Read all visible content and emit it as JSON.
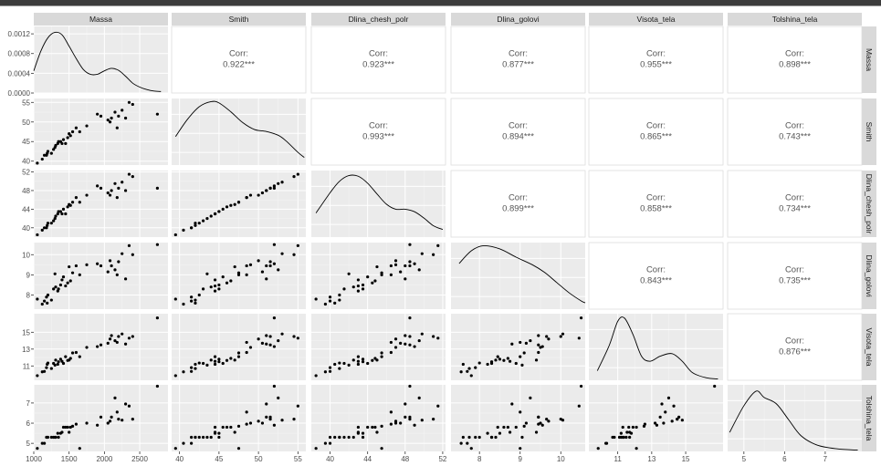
{
  "chart_data": {
    "type": "pairs",
    "variables": [
      "Massa",
      "Smith",
      "Dlina_chesh_polr",
      "Dlina_golovi",
      "Visota_tela",
      "Tolshina_tela"
    ],
    "correlations": {
      "Massa": {
        "Smith": "0.922***",
        "Dlina_chesh_polr": "0.923***",
        "Dlina_golovi": "0.877***",
        "Visota_tela": "0.955***",
        "Tolshina_tela": "0.898***"
      },
      "Smith": {
        "Dlina_chesh_polr": "0.993***",
        "Dlina_golovi": "0.894***",
        "Visota_tela": "0.865***",
        "Tolshina_tela": "0.743***"
      },
      "Dlina_chesh_polr": {
        "Dlina_golovi": "0.899***",
        "Visota_tela": "0.858***",
        "Tolshina_tela": "0.734***"
      },
      "Dlina_golovi": {
        "Visota_tela": "0.843***",
        "Tolshina_tela": "0.735***"
      },
      "Visota_tela": {
        "Tolshina_tela": "0.876***"
      }
    },
    "corr_label": "Corr:",
    "axes": {
      "Massa": {
        "lim": [
          1000,
          2900
        ],
        "ticks": [
          1000,
          1500,
          2000,
          2500
        ],
        "tick_labels": [
          "1000",
          "1500",
          "2000",
          "2500"
        ]
      },
      "Smith": {
        "lim": [
          39,
          56
        ],
        "ticks": [
          40,
          45,
          50,
          55
        ],
        "tick_labels": [
          "40",
          "45",
          "50",
          "55"
        ]
      },
      "Dlina_chesh_polr": {
        "lim": [
          38,
          52.3
        ],
        "ticks": [
          40,
          44,
          48,
          52
        ],
        "tick_labels": [
          "40",
          "44",
          "48",
          "52"
        ]
      },
      "Dlina_golovi": {
        "lim": [
          7.3,
          10.6
        ],
        "ticks": [
          8,
          9,
          10
        ],
        "tick_labels": [
          "8",
          "9",
          "10"
        ]
      },
      "Visota_tela": {
        "lim": [
          9.3,
          17.2
        ],
        "ticks": [
          11,
          13,
          15
        ],
        "tick_labels": [
          "11",
          "13",
          "15"
        ]
      },
      "Tolshina_tela": {
        "lim": [
          4.6,
          7.9
        ],
        "ticks": [
          5,
          6,
          7
        ],
        "tick_labels": [
          "5",
          "6",
          "7"
        ]
      }
    },
    "massa_density_axis": {
      "lim": [
        0,
        0.00135
      ],
      "ticks": [
        0,
        0.0004,
        0.0008,
        0.0012
      ],
      "tick_labels": [
        "0.0000",
        "0.0004",
        "0.0008",
        "0.0012"
      ]
    },
    "observations": {
      "Massa": [
        1050,
        1120,
        1150,
        1180,
        1190,
        1200,
        1250,
        1280,
        1300,
        1310,
        1340,
        1350,
        1380,
        1400,
        1420,
        1450,
        1480,
        1500,
        1520,
        1550,
        1600,
        1650,
        1750,
        1900,
        1950,
        2050,
        2080,
        2100,
        2150,
        2180,
        2200,
        2250,
        2300,
        2350,
        2400,
        2750
      ],
      "Smith": [
        39.5,
        40.5,
        41.5,
        41.5,
        42,
        42.5,
        42,
        43,
        43.5,
        44,
        44.5,
        45,
        45,
        44.5,
        45.5,
        44.5,
        46,
        47,
        46.5,
        47.5,
        48.5,
        47.5,
        49,
        52,
        51.5,
        50.5,
        50,
        51,
        52.5,
        48.5,
        51.5,
        53,
        51,
        55,
        54.5,
        52
      ],
      "Dlina_chesh_polr": [
        38.5,
        39.5,
        40,
        40,
        40.5,
        41,
        41,
        41.5,
        42,
        42.5,
        43,
        43.5,
        43.5,
        43,
        44,
        43,
        44.5,
        45,
        44.8,
        45.5,
        46.5,
        45.5,
        47,
        49,
        48.5,
        47.5,
        47,
        48,
        49.5,
        46.5,
        48.5,
        49.8,
        48,
        51.5,
        51,
        48.5
      ],
      "Dlina_golovi": [
        7.8,
        7.55,
        7.7,
        7.9,
        7.6,
        8.0,
        7.75,
        8.3,
        9.05,
        8.4,
        8.2,
        8.3,
        8.5,
        8.75,
        8.9,
        8.45,
        8.6,
        9.4,
        8.7,
        9.1,
        9.45,
        9.0,
        9.5,
        9.55,
        9.45,
        9.15,
        9.7,
        9.45,
        9.25,
        9.0,
        9.65,
        10.05,
        8.8,
        10.45,
        10.0,
        10.5
      ],
      "Visota_tela": [
        9.85,
        10.3,
        10.35,
        10.8,
        11.2,
        11.35,
        10.7,
        11.3,
        11.1,
        11.7,
        11.2,
        11.5,
        11.8,
        11.55,
        11.3,
        12.1,
        11.65,
        11.7,
        11.9,
        12.55,
        12.6,
        12.1,
        13.2,
        13.3,
        13.5,
        13.7,
        14.2,
        14.6,
        14.0,
        13.8,
        14.5,
        14.8,
        13.6,
        14.3,
        14.5,
        16.7
      ],
      "Tolshina_tela": [
        4.75,
        5.0,
        5.0,
        5.3,
        5.3,
        5.3,
        5.3,
        5.3,
        5.3,
        5.3,
        5.5,
        5.3,
        5.5,
        5.55,
        5.8,
        5.8,
        5.8,
        5.55,
        5.8,
        5.85,
        5.95,
        4.75,
        6.0,
        5.9,
        6.3,
        6.0,
        6.1,
        6.3,
        7.25,
        6.55,
        6.2,
        6.15,
        6.95,
        6.85,
        6.2,
        8.4
      ]
    },
    "density_shapes": {
      "Massa": [
        [
          1000,
          0.00045
        ],
        [
          1100,
          0.00085
        ],
        [
          1200,
          0.00112
        ],
        [
          1300,
          0.00123
        ],
        [
          1400,
          0.00118
        ],
        [
          1500,
          0.00095
        ],
        [
          1600,
          0.0007
        ],
        [
          1700,
          0.00048
        ],
        [
          1800,
          0.00038
        ],
        [
          1900,
          0.00038
        ],
        [
          2000,
          0.00045
        ],
        [
          2100,
          0.0005
        ],
        [
          2200,
          0.00046
        ],
        [
          2300,
          0.00034
        ],
        [
          2400,
          0.0002
        ],
        [
          2500,
          0.00012
        ],
        [
          2600,
          7e-05
        ],
        [
          2700,
          4e-05
        ],
        [
          2800,
          3e-05
        ]
      ],
      "Smith": [
        [
          39.5,
          0.45
        ],
        [
          41,
          0.72
        ],
        [
          42.5,
          0.92
        ],
        [
          44,
          1.0
        ],
        [
          45,
          0.98
        ],
        [
          46.5,
          0.84
        ],
        [
          48,
          0.67
        ],
        [
          49.5,
          0.56
        ],
        [
          51,
          0.53
        ],
        [
          52.5,
          0.47
        ],
        [
          53.5,
          0.38
        ],
        [
          55,
          0.2
        ],
        [
          55.8,
          0.12
        ]
      ],
      "Dlina_chesh_polr": [
        [
          38.5,
          0.38
        ],
        [
          40,
          0.7
        ],
        [
          41,
          0.88
        ],
        [
          42,
          0.97
        ],
        [
          43,
          0.96
        ],
        [
          44,
          0.85
        ],
        [
          45,
          0.68
        ],
        [
          46,
          0.52
        ],
        [
          47,
          0.44
        ],
        [
          48,
          0.44
        ],
        [
          49,
          0.4
        ],
        [
          50,
          0.3
        ],
        [
          51,
          0.18
        ],
        [
          52,
          0.12
        ]
      ],
      "Dlina_golovi": [
        [
          7.5,
          0.72
        ],
        [
          7.8,
          0.92
        ],
        [
          8.1,
          1.0
        ],
        [
          8.5,
          0.95
        ],
        [
          8.9,
          0.82
        ],
        [
          9.3,
          0.7
        ],
        [
          9.6,
          0.58
        ],
        [
          9.9,
          0.42
        ],
        [
          10.2,
          0.26
        ],
        [
          10.5,
          0.13
        ],
        [
          10.6,
          0.1
        ]
      ],
      "Visota_tela": [
        [
          9.8,
          0.15
        ],
        [
          10.5,
          0.55
        ],
        [
          11.0,
          0.93
        ],
        [
          11.4,
          0.98
        ],
        [
          11.9,
          0.72
        ],
        [
          12.4,
          0.38
        ],
        [
          12.9,
          0.3
        ],
        [
          13.5,
          0.38
        ],
        [
          14.2,
          0.42
        ],
        [
          14.8,
          0.3
        ],
        [
          15.4,
          0.12
        ],
        [
          16.2,
          0.04
        ],
        [
          16.9,
          0.02
        ]
      ],
      "Tolshina_tela": [
        [
          4.65,
          0.3
        ],
        [
          5.0,
          0.72
        ],
        [
          5.3,
          0.95
        ],
        [
          5.5,
          0.85
        ],
        [
          5.8,
          0.75
        ],
        [
          6.1,
          0.5
        ],
        [
          6.4,
          0.25
        ],
        [
          6.8,
          0.1
        ],
        [
          7.3,
          0.04
        ],
        [
          7.8,
          0.02
        ]
      ]
    }
  }
}
